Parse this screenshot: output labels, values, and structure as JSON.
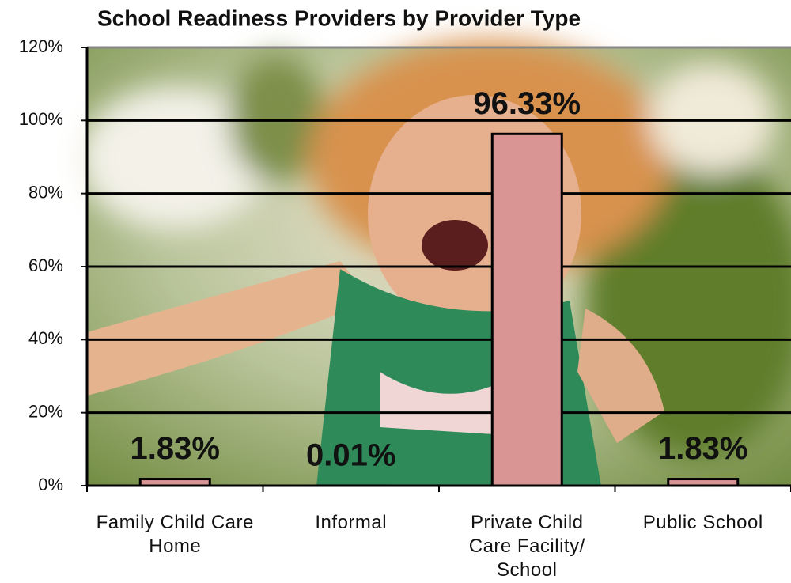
{
  "chart_data": {
    "type": "bar",
    "title": "School Readiness Providers by Provider Type",
    "categories": [
      "Family Child Care Home",
      "Informal",
      "Private Child Care Facility/ School",
      "Public School"
    ],
    "values": [
      1.83,
      0.01,
      96.33,
      1.83
    ],
    "value_labels": [
      "1.83%",
      "0.01%",
      "96.33%",
      "1.83%"
    ],
    "color": "#d99594",
    "ylim": [
      0,
      120
    ],
    "yticks": [
      {
        "value": 0,
        "label": "0%"
      },
      {
        "value": 20,
        "label": "20%"
      },
      {
        "value": 40,
        "label": "40%"
      },
      {
        "value": 60,
        "label": "60%"
      },
      {
        "value": 80,
        "label": "80%"
      },
      {
        "value": 100,
        "label": "100%"
      },
      {
        "value": 120,
        "label": "120%"
      }
    ],
    "grid": true
  }
}
